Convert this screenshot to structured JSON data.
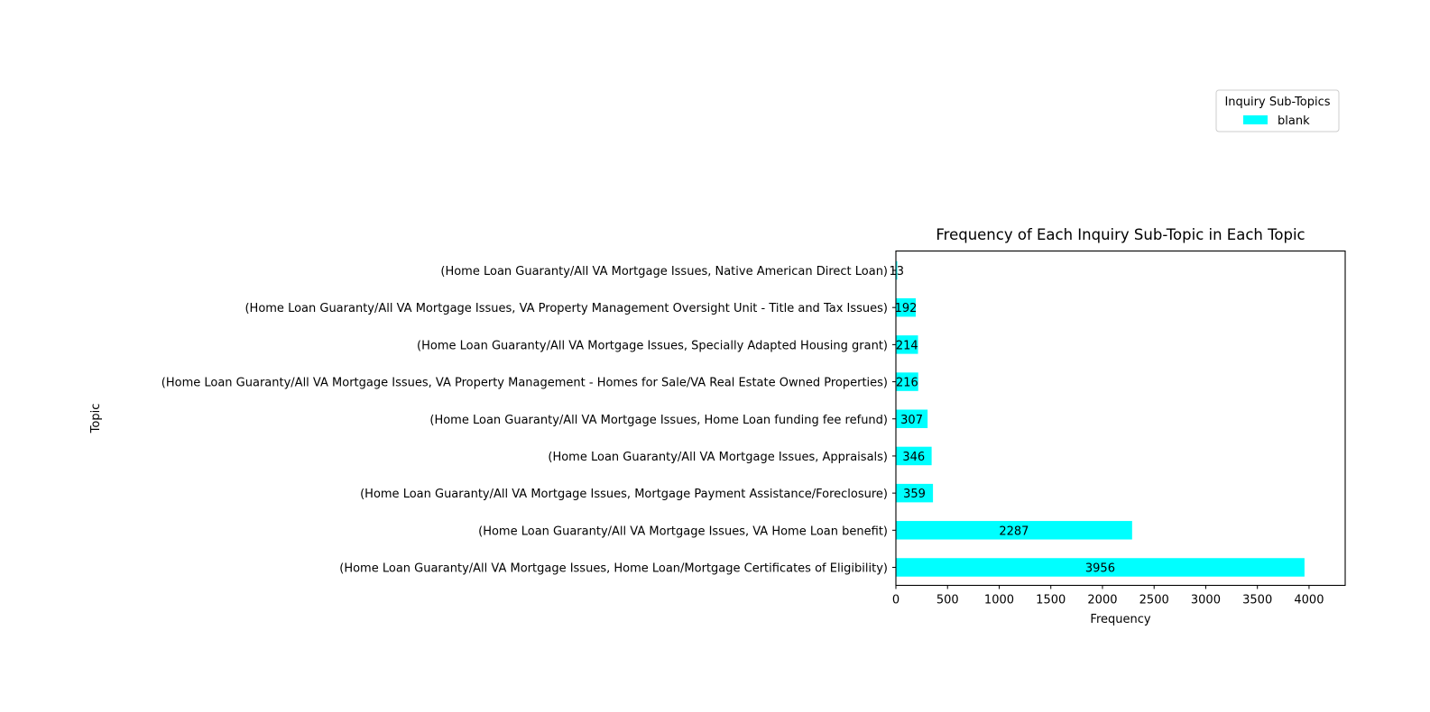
{
  "chart_data": {
    "type": "bar",
    "orientation": "horizontal",
    "title": "Frequency of Each Inquiry Sub-Topic in Each Topic",
    "xlabel": "Frequency",
    "ylabel": "Topic",
    "xlim": [
      0,
      4350
    ],
    "x_ticks": [
      0,
      500,
      1000,
      1500,
      2000,
      2500,
      3000,
      3500,
      4000
    ],
    "grid": false,
    "legend": {
      "title": "Inquiry Sub-Topics",
      "placement": "top-right",
      "entries": [
        "blank"
      ]
    },
    "categories": [
      "(Home Loan Guaranty/All VA Mortgage Issues, Home Loan/Mortgage Certificates of Eligibility)",
      "(Home Loan Guaranty/All VA Mortgage Issues, VA Home Loan benefit)",
      "(Home Loan Guaranty/All VA Mortgage Issues, Mortgage Payment Assistance/Foreclosure)",
      "(Home Loan Guaranty/All VA Mortgage Issues, Appraisals)",
      "(Home Loan Guaranty/All VA Mortgage Issues, Home Loan funding fee refund)",
      "(Home Loan Guaranty/All VA Mortgage Issues, VA Property Management - Homes for Sale/VA Real Estate Owned Properties)",
      "(Home Loan Guaranty/All VA Mortgage Issues, Specially Adapted Housing grant)",
      "(Home Loan Guaranty/All VA Mortgage Issues, VA Property Management Oversight Unit - Title and Tax Issues)",
      "(Home Loan Guaranty/All VA Mortgage Issues, Native American Direct Loan)"
    ],
    "series": [
      {
        "name": "blank",
        "color": "#00ffff",
        "values": [
          3956,
          2287,
          359,
          346,
          307,
          216,
          214,
          192,
          13
        ]
      }
    ]
  }
}
